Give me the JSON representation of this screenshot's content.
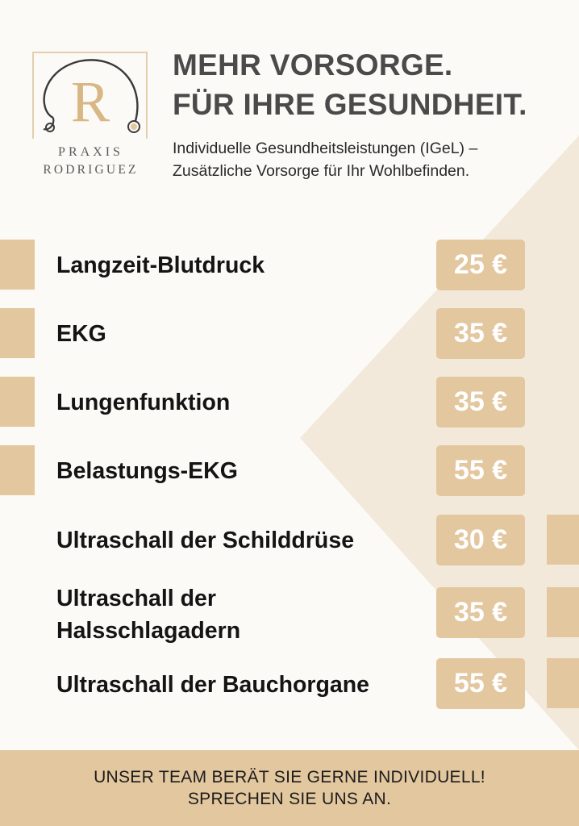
{
  "colors": {
    "accent": "#e3c79f",
    "background": "#fcfaf6",
    "headline": "#4a4a4a",
    "text": "#141414"
  },
  "logo": {
    "letter": "R",
    "line1": "PRAXIS",
    "line2": "RODRIGUEZ",
    "icon": "stethoscope-icon"
  },
  "header": {
    "headline_line1": "MEHR VORSORGE.",
    "headline_line2": "FÜR IHRE GESUNDHEIT.",
    "subline_line1": "Individuelle Gesundheitsleistungen (IGeL) –",
    "subline_line2": "Zusätzliche Vorsorge für Ihr Wohlbefinden."
  },
  "services": [
    {
      "name": "Langzeit-Blutdruck",
      "price": "25 €"
    },
    {
      "name": "EKG",
      "price": "35 €"
    },
    {
      "name": "Lungenfunktion",
      "price": "35 €"
    },
    {
      "name": "Belastungs-EKG",
      "price": "55 €"
    },
    {
      "name": "Ultraschall der Schilddrüse",
      "price": "30 €"
    },
    {
      "name_line1": "Ultraschall der",
      "name_line2": "Halsschlagadern",
      "price": "35 €"
    },
    {
      "name": "Ultraschall der Bauchorgane",
      "price": "55 €"
    }
  ],
  "footer": {
    "line1": "UNSER TEAM BERÄT SIE GERNE INDIVIDUELL!",
    "line2": "SPRECHEN SIE UNS AN."
  }
}
